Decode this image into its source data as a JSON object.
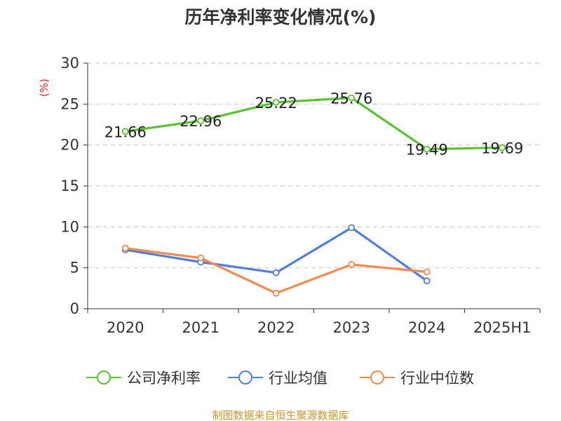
{
  "chart_data": {
    "type": "line",
    "title": "历年净利率变化情况(%)",
    "ylabel": "(%)",
    "xlabel": "",
    "categories": [
      "2020",
      "2021",
      "2022",
      "2023",
      "2024",
      "2025H1"
    ],
    "ylim": [
      0,
      30
    ],
    "yticks": [
      0,
      5,
      10,
      15,
      20,
      25,
      30
    ],
    "grid": true,
    "legend_position": "bottom",
    "series": [
      {
        "name": "公司净利率",
        "color": "#5ac232",
        "values": [
          21.66,
          22.96,
          25.22,
          25.76,
          19.49,
          19.69
        ],
        "labels": [
          "21.66",
          "22.96",
          "25.22",
          "25.76",
          "19.49",
          "19.69"
        ]
      },
      {
        "name": "行业均值",
        "color": "#4f7fdc",
        "values": [
          7.2,
          5.7,
          4.4,
          9.9,
          3.4,
          null
        ]
      },
      {
        "name": "行业中位数",
        "color": "#f58a52",
        "values": [
          7.4,
          6.2,
          1.9,
          5.4,
          4.5,
          null
        ]
      }
    ]
  },
  "source": "制图数据来自恒生聚源数据库"
}
